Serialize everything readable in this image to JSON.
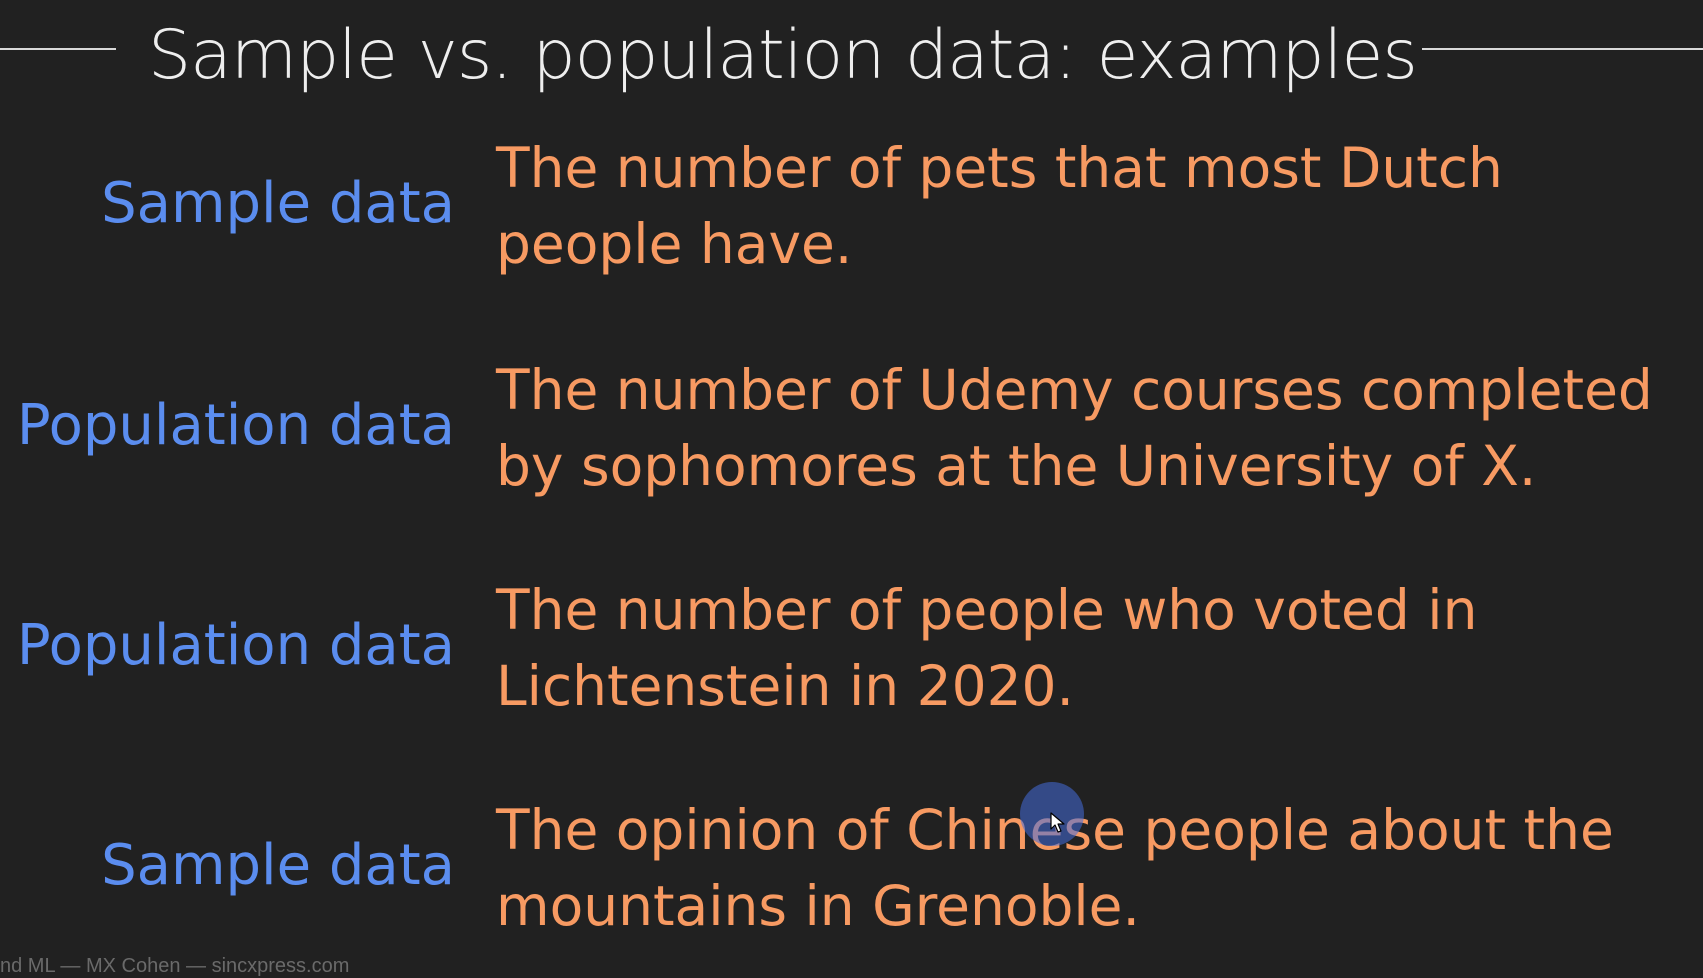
{
  "slide": {
    "title": "Sample vs. population data: examples",
    "rows": [
      {
        "label": "Sample data",
        "text": "The number of pets that most Dutch people have."
      },
      {
        "label": "Population data",
        "text": "The number of Udemy courses completed by sophomores at the University of X."
      },
      {
        "label": "Population data",
        "text": "The number of people who voted in Lichtenstein in 2020."
      },
      {
        "label": "Sample data",
        "text": "The opinion of Chinese people about the mountains in Grenoble."
      }
    ],
    "footer": "nd ML — MX Cohen — sincxpress.com"
  },
  "colors": {
    "background": "#212121",
    "label": "#5b8def",
    "text": "#f79a62",
    "title": "#eeeeee"
  },
  "icons": {
    "cursor": "mouse-pointer-icon"
  }
}
